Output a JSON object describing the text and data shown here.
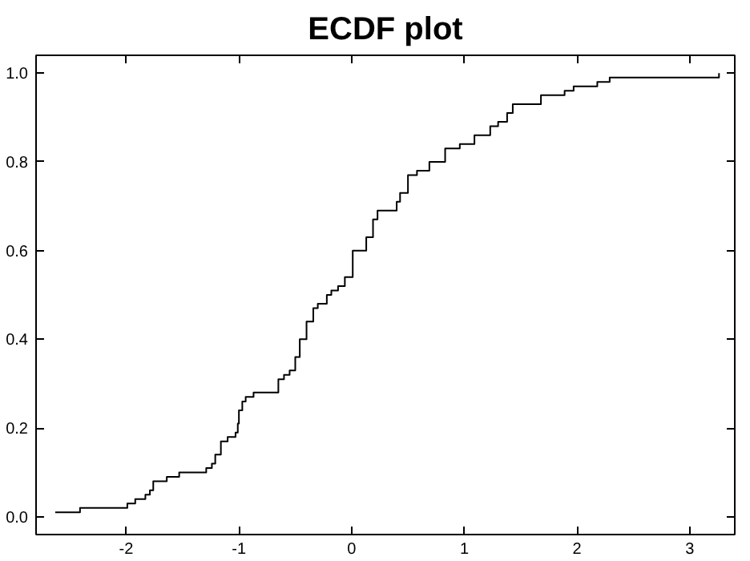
{
  "chart_data": {
    "type": "step",
    "title": "ECDF plot",
    "series": [
      {
        "color": "#000000",
        "x": [
          -2.63,
          -2.41,
          -1.99,
          -1.92,
          -1.83,
          -1.79,
          -1.76,
          -1.64,
          -1.53,
          -1.29,
          -1.24,
          -1.21,
          -1.16,
          -1.1,
          -1.03,
          -1.01,
          -1.0,
          -0.97,
          -0.94,
          -0.87,
          -0.65,
          -0.6,
          -0.55,
          -0.5,
          -0.46,
          -0.4,
          -0.34,
          -0.3,
          -0.22,
          -0.18,
          -0.12,
          -0.06,
          0.01,
          0.13,
          0.19,
          0.23,
          0.4,
          0.43,
          0.5,
          0.58,
          0.69,
          0.83,
          0.96,
          1.09,
          1.23,
          1.3,
          1.38,
          1.43,
          1.68,
          1.89,
          1.97,
          2.18,
          2.29,
          3.26
        ],
        "values": [
          0.01,
          0.02,
          0.03,
          0.04,
          0.05,
          0.06,
          0.08,
          0.09,
          0.1,
          0.11,
          0.12,
          0.14,
          0.17,
          0.18,
          0.19,
          0.21,
          0.24,
          0.26,
          0.27,
          0.28,
          0.31,
          0.32,
          0.33,
          0.36,
          0.4,
          0.44,
          0.47,
          0.48,
          0.5,
          0.51,
          0.52,
          0.54,
          0.6,
          0.63,
          0.67,
          0.69,
          0.71,
          0.73,
          0.77,
          0.78,
          0.8,
          0.83,
          0.84,
          0.86,
          0.88,
          0.89,
          0.91,
          0.93,
          0.95,
          0.96,
          0.97,
          0.98,
          0.99,
          1.0
        ]
      }
    ],
    "xlim": [
      -2.8,
      3.4
    ],
    "xticks": [
      -2,
      -1,
      0,
      1,
      2,
      3
    ],
    "ylim": [
      -0.04,
      1.04
    ],
    "yticks": [
      {
        "value": 0,
        "label": "0.0"
      },
      0.2,
      0.4,
      0.6,
      0.8,
      {
        "value": 1,
        "label": "1.0"
      }
    ],
    "grid": false,
    "marker": "none",
    "line_style": "solid"
  }
}
